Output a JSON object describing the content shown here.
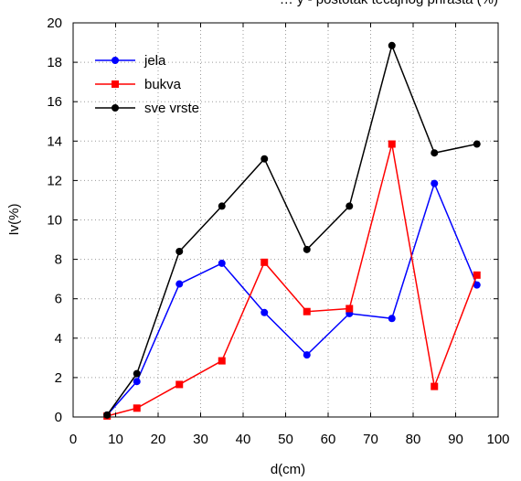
{
  "chart_data": {
    "type": "line",
    "title": "… y - postotak tečajnog prirasta (%)",
    "xlabel": "d(cm)",
    "ylabel": "Iv(%)",
    "xlim": [
      0,
      100
    ],
    "ylim": [
      0,
      20
    ],
    "xticks": [
      0,
      10,
      20,
      30,
      40,
      50,
      60,
      70,
      80,
      90,
      100
    ],
    "yticks": [
      0,
      2,
      4,
      6,
      8,
      10,
      12,
      14,
      16,
      18,
      20
    ],
    "grid": true,
    "legend_position": "top-left",
    "series": [
      {
        "name": "jela",
        "color": "#0000ff",
        "marker": "circle",
        "x": [
          8,
          15,
          25,
          35,
          45,
          55,
          65,
          75,
          85,
          95
        ],
        "y": [
          0.1,
          1.8,
          6.75,
          7.8,
          5.3,
          3.15,
          5.25,
          5.0,
          11.85,
          6.7
        ]
      },
      {
        "name": "bukva",
        "color": "#ff0000",
        "marker": "square",
        "x": [
          8,
          15,
          25,
          35,
          45,
          55,
          65,
          75,
          85,
          95
        ],
        "y": [
          0.05,
          0.45,
          1.65,
          2.85,
          7.85,
          5.35,
          5.5,
          13.85,
          1.55,
          7.2
        ]
      },
      {
        "name": "sve vrste",
        "color": "#000000",
        "marker": "circle",
        "x": [
          8,
          15,
          25,
          35,
          45,
          55,
          65,
          75,
          85,
          95
        ],
        "y": [
          0.1,
          2.2,
          8.4,
          10.7,
          13.1,
          8.5,
          10.7,
          18.85,
          13.4,
          13.85
        ]
      }
    ]
  }
}
